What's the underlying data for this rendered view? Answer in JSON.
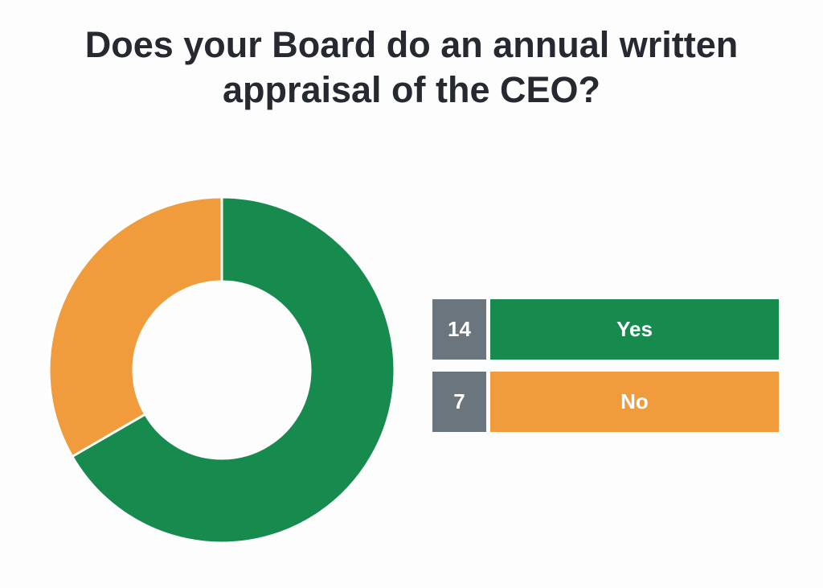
{
  "chart_data": {
    "type": "pie",
    "style": "donut",
    "title": "Does your Board do an annual written appraisal of the CEO?",
    "categories": [
      "Yes",
      "No"
    ],
    "values": [
      14,
      7
    ],
    "colors": [
      "#178b4e",
      "#f19c3c"
    ],
    "legend": {
      "placement": "right",
      "count_box_color": "#6b757e"
    }
  }
}
